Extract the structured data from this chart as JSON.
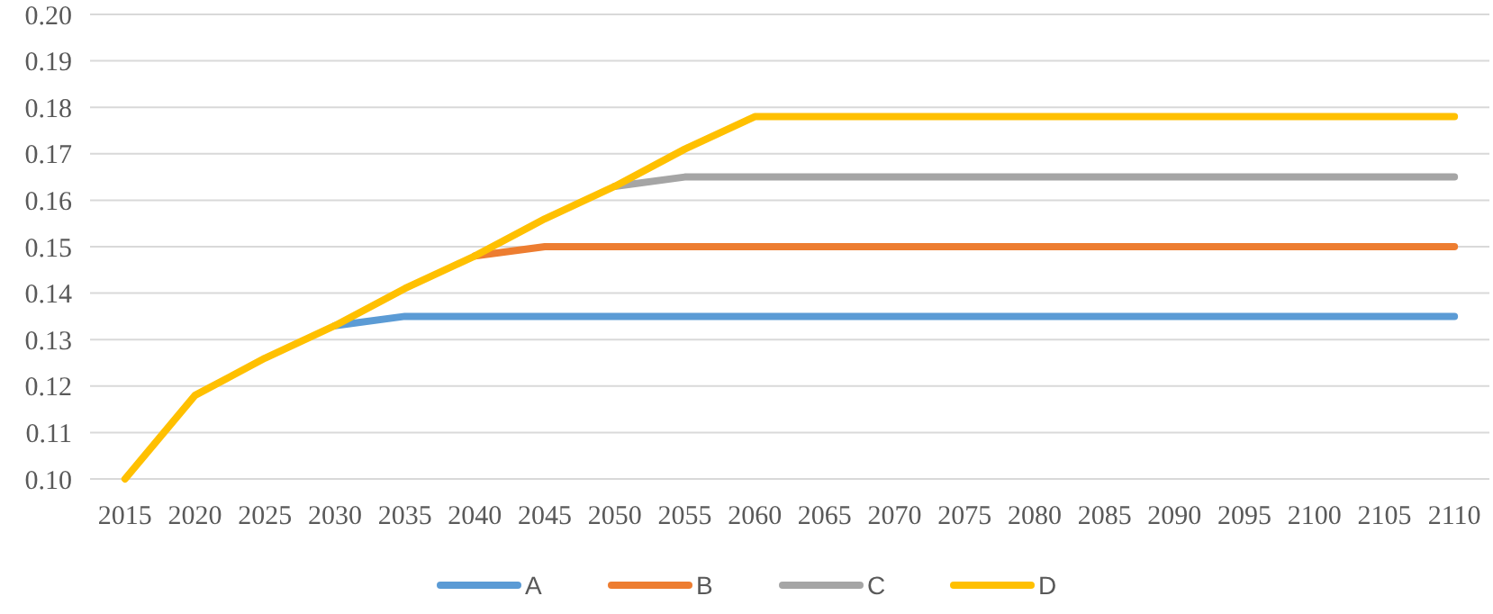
{
  "chart_data": {
    "type": "line",
    "categories": [
      "2015",
      "2020",
      "2025",
      "2030",
      "2035",
      "2040",
      "2045",
      "2050",
      "2055",
      "2060",
      "2065",
      "2070",
      "2075",
      "2080",
      "2085",
      "2090",
      "2095",
      "2100",
      "2105",
      "2110"
    ],
    "series": [
      {
        "name": "A",
        "color": "#5b9bd5",
        "values": [
          null,
          null,
          null,
          0.133,
          0.135,
          0.135,
          0.135,
          0.135,
          0.135,
          0.135,
          0.135,
          0.135,
          0.135,
          0.135,
          0.135,
          0.135,
          0.135,
          0.135,
          0.135,
          0.135
        ]
      },
      {
        "name": "B",
        "color": "#ed7d31",
        "values": [
          null,
          null,
          null,
          null,
          null,
          0.148,
          0.15,
          0.15,
          0.15,
          0.15,
          0.15,
          0.15,
          0.15,
          0.15,
          0.15,
          0.15,
          0.15,
          0.15,
          0.15,
          0.15
        ]
      },
      {
        "name": "C",
        "color": "#a5a5a5",
        "values": [
          null,
          null,
          null,
          null,
          null,
          null,
          null,
          0.163,
          0.165,
          0.165,
          0.165,
          0.165,
          0.165,
          0.165,
          0.165,
          0.165,
          0.165,
          0.165,
          0.165,
          0.165
        ]
      },
      {
        "name": "D",
        "color": "#ffc000",
        "values": [
          0.1,
          0.118,
          0.126,
          0.133,
          0.141,
          0.148,
          0.156,
          0.163,
          0.171,
          0.178,
          0.178,
          0.178,
          0.178,
          0.178,
          0.178,
          0.178,
          0.178,
          0.178,
          0.178,
          0.178
        ]
      }
    ],
    "ylim": [
      0.1,
      0.2
    ],
    "yticks": [
      {
        "value": 0.1,
        "label": "0.10"
      },
      {
        "value": 0.11,
        "label": "0.11"
      },
      {
        "value": 0.12,
        "label": "0.12"
      },
      {
        "value": 0.13,
        "label": "0.13"
      },
      {
        "value": 0.14,
        "label": "0.14"
      },
      {
        "value": 0.15,
        "label": "0.15"
      },
      {
        "value": 0.16,
        "label": "0.16"
      },
      {
        "value": 0.17,
        "label": "0.17"
      },
      {
        "value": 0.18,
        "label": "0.18"
      },
      {
        "value": 0.19,
        "label": "0.19"
      },
      {
        "value": 0.2,
        "label": "0.20"
      }
    ],
    "grid": "y",
    "legend": "bottom",
    "marker": "none",
    "line_style": "solid"
  }
}
